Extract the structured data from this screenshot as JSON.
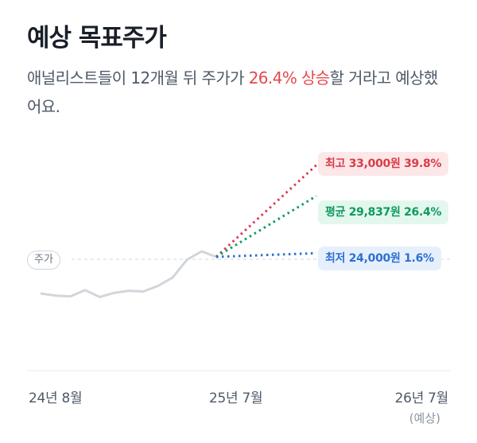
{
  "header": {
    "title": "예상 목표주가",
    "subtitle_before": "애널리스트들이 12개월 뒤 주가가 ",
    "subtitle_highlight": "26.4% 상승",
    "subtitle_after": "할 거라고 예상했어요."
  },
  "colors": {
    "history_line": "#d1d6db",
    "high": "#d83c47",
    "average": "#0e9a60",
    "low": "#2f6fd0",
    "highlight": "#e5484d"
  },
  "targets": {
    "high": "최고 33,000원 39.8%",
    "average": "평균 29,837원 26.4%",
    "low": "최저 24,000원 1.6%"
  },
  "current_price_label": "주가",
  "x_axis": {
    "start": "24년 8월",
    "current": "25년 7월",
    "end": "26년 7월",
    "end_note": "(예상)"
  },
  "chart_data": {
    "type": "line",
    "history": [
      0.39,
      0.36,
      0.35,
      0.44,
      0.34,
      0.4,
      0.43,
      0.42,
      0.5,
      0.62,
      0.88,
      1.0,
      0.92
    ],
    "projection_change_pct": {
      "high": 39.8,
      "average": 26.4,
      "low": 1.6
    }
  }
}
